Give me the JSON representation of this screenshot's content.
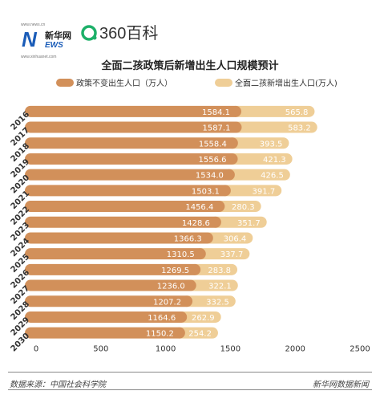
{
  "header": {
    "site_url": "www.news.cn",
    "logo_main": "N",
    "logo_cn": "新华网",
    "logo_ews": "EWS",
    "logo_sub": "www.xinhuanet.com",
    "baike_brand": "360百科"
  },
  "colors": {
    "base_bar": "#d2905a",
    "added_bar": "#efce97",
    "axis_text": "#333333",
    "brand_blue": "#1a5cb8",
    "baike_green": "#1db069"
  },
  "chart_data": {
    "type": "bar",
    "orientation": "horizontal",
    "stacked": true,
    "title": "全面二孩政策后新增出生人口规模预计",
    "categories": [
      "2016",
      "2017",
      "2018",
      "2019",
      "2020",
      "2021",
      "2022",
      "2023",
      "2024",
      "2025",
      "2026",
      "2027",
      "2028",
      "2029",
      "2030"
    ],
    "series": [
      {
        "name": "政策不变出生人口（万人）",
        "values": [
          1584.1,
          1587.1,
          1558.4,
          1556.6,
          1534.0,
          1503.1,
          1456.4,
          1428.6,
          1366.3,
          1310.5,
          1269.5,
          1236.0,
          1207.2,
          1164.6,
          1150.2
        ]
      },
      {
        "name": "全面二孩新增出生人口(万人)",
        "values": [
          565.8,
          583.2,
          393.5,
          421.3,
          426.5,
          391.7,
          280.3,
          351.7,
          306.4,
          337.7,
          283.8,
          322.1,
          332.5,
          262.9,
          254.2
        ]
      }
    ],
    "xlim": [
      0,
      2500
    ],
    "xticks": [
      0,
      500,
      1000,
      1500,
      2000,
      2500
    ],
    "grid": false,
    "legend_position": "top"
  },
  "footer": {
    "source": "数据来源：中国社会科学院",
    "brand": "新华网数据新闻"
  }
}
